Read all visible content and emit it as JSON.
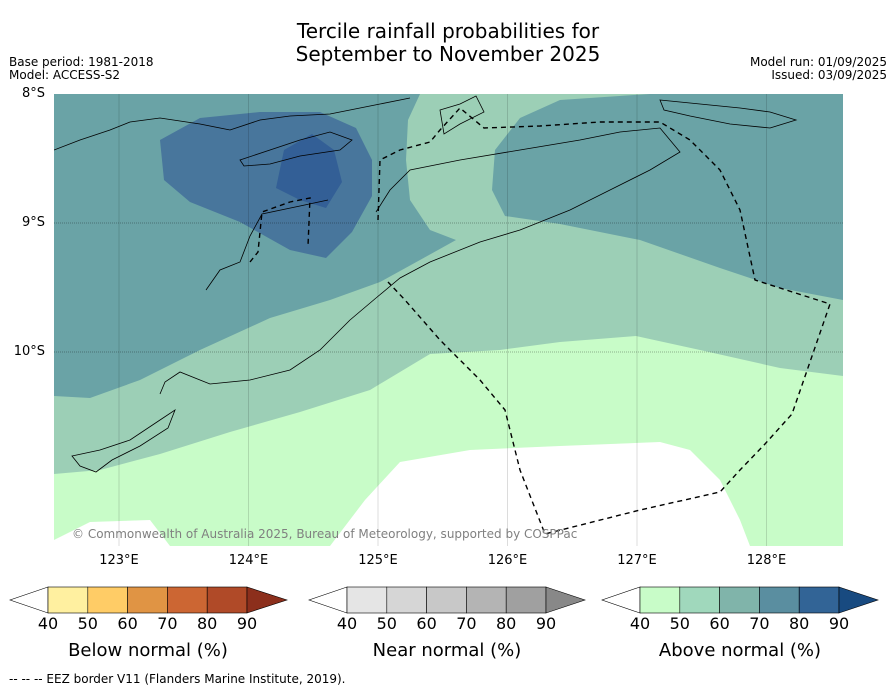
{
  "title": {
    "line1": "Tercile rainfall probabilities for",
    "line2": "September to November 2025"
  },
  "meta": {
    "base_period": "Base period: 1981-2018",
    "model": "Model: ACCESS-S2",
    "model_run": "Model run: 01/09/2025",
    "issued": "Issued: 03/09/2025"
  },
  "map": {
    "lat_labels": [
      "8°S",
      "9°S",
      "10°S"
    ],
    "lon_labels": [
      "123°E",
      "124°E",
      "125°E",
      "126°E",
      "127°E",
      "128°E"
    ],
    "lat_values": [
      -8,
      -9,
      -10
    ],
    "lon_values": [
      123,
      124,
      125,
      126,
      127,
      128
    ],
    "extent": {
      "lon": [
        122.5,
        128.6
      ],
      "lat": [
        -8,
        -11.5
      ]
    },
    "copyright": "© Commonwealth of Australia 2025, Bureau of Meteorology, supported by COSPPac"
  },
  "colorbars": [
    {
      "title": "Below normal (%)",
      "labels": [
        "40",
        "50",
        "60",
        "70",
        "80",
        "90"
      ],
      "colors": [
        "#ffffff",
        "#fff0a0",
        "#ffcc66",
        "#e09444",
        "#cc6633",
        "#b04a28",
        "#8c2f1c"
      ]
    },
    {
      "title": "Near normal (%)",
      "labels": [
        "40",
        "50",
        "60",
        "70",
        "80",
        "90"
      ],
      "colors": [
        "#ffffff",
        "#e5e5e5",
        "#d6d6d6",
        "#c8c8c8",
        "#b4b4b4",
        "#a0a0a0",
        "#888888"
      ]
    },
    {
      "title": "Above normal (%)",
      "labels": [
        "40",
        "50",
        "60",
        "70",
        "80",
        "90"
      ],
      "colors": [
        "#ffffff",
        "#c8fcc8",
        "#a0d8bc",
        "#80b4aa",
        "#5a8ea0",
        "#326496",
        "#184a80"
      ]
    }
  ],
  "footer": "--  --  -- EEZ border V11 (Flanders Marine Institute, 2019).",
  "colors": {
    "above_40": "#c8fcc8",
    "above_50": "#9ccfb6",
    "above_60": "#6aa3a6",
    "above_70": "#48769c",
    "above_80": "#335f96"
  }
}
